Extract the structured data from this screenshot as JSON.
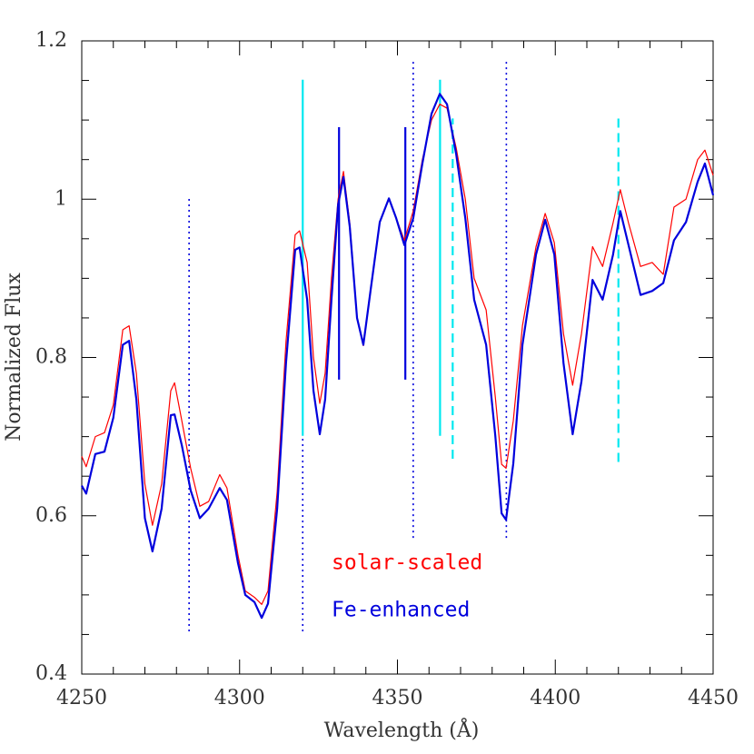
{
  "chart_data": {
    "type": "line",
    "xlabel": "Wavelength (Å)",
    "ylabel": "Normalized Flux",
    "x": [
      4250,
      4251.4,
      4254.3,
      4257.2,
      4260,
      4263,
      4265,
      4267.3,
      4270,
      4272.4,
      4275.3,
      4278.2,
      4279.4,
      4281.7,
      4284.5,
      4287.4,
      4290.2,
      4293.7,
      4296,
      4299.5,
      4301.8,
      4304.7,
      4307,
      4309,
      4311.9,
      4314.7,
      4317.6,
      4319,
      4321.4,
      4323.4,
      4325.4,
      4327.1,
      4329.1,
      4331.2,
      4332.9,
      4334.9,
      4337.2,
      4339.2,
      4341.5,
      4344.4,
      4347.3,
      4349.6,
      4352.2,
      4355,
      4357.9,
      4360.8,
      4363.4,
      4365.7,
      4368.6,
      4371.5,
      4374.3,
      4378.1,
      4381,
      4383,
      4384.4,
      4386.7,
      4389.6,
      4393.9,
      4396.8,
      4399.7,
      4402.6,
      4405.5,
      4408.3,
      4411.8,
      4415,
      4418.3,
      4420.6,
      4423.2,
      4427,
      4430.7,
      4434.2,
      4437.6,
      4441.4,
      4445.1,
      4447.4,
      4450
    ],
    "series": [
      {
        "name": "solar-scaled",
        "color": "#ff0000",
        "width": 1.2,
        "values": [
          0.675,
          0.662,
          0.7,
          0.705,
          0.74,
          0.835,
          0.84,
          0.78,
          0.64,
          0.588,
          0.64,
          0.758,
          0.768,
          0.72,
          0.66,
          0.612,
          0.618,
          0.652,
          0.635,
          0.55,
          0.505,
          0.497,
          0.488,
          0.505,
          0.63,
          0.82,
          0.955,
          0.96,
          0.92,
          0.8,
          0.742,
          0.78,
          0.9,
          1.0,
          1.035,
          0.97,
          0.85,
          0.815,
          0.885,
          0.971,
          1.0,
          0.976,
          0.948,
          0.985,
          1.05,
          1.1,
          1.12,
          1.115,
          1.065,
          1.0,
          0.9,
          0.86,
          0.75,
          0.665,
          0.66,
          0.72,
          0.84,
          0.94,
          0.982,
          0.945,
          0.83,
          0.765,
          0.83,
          0.94,
          0.915,
          0.97,
          1.012,
          0.97,
          0.915,
          0.92,
          0.905,
          0.99,
          1.0,
          1.05,
          1.062,
          1.03
        ]
      },
      {
        "name": "Fe-enhanced",
        "color": "#0000dd",
        "width": 2.2,
        "values": [
          0.638,
          0.628,
          0.678,
          0.681,
          0.724,
          0.816,
          0.821,
          0.747,
          0.597,
          0.555,
          0.609,
          0.727,
          0.728,
          0.689,
          0.632,
          0.597,
          0.609,
          0.635,
          0.62,
          0.54,
          0.5,
          0.491,
          0.471,
          0.489,
          0.609,
          0.793,
          0.936,
          0.939,
          0.873,
          0.758,
          0.703,
          0.747,
          0.873,
          0.993,
          1.028,
          0.965,
          0.85,
          0.816,
          0.885,
          0.971,
          1.001,
          0.976,
          0.942,
          0.976,
          1.045,
          1.108,
          1.133,
          1.12,
          1.057,
          0.976,
          0.873,
          0.816,
          0.701,
          0.603,
          0.595,
          0.666,
          0.816,
          0.93,
          0.974,
          0.93,
          0.793,
          0.703,
          0.77,
          0.898,
          0.873,
          0.93,
          0.985,
          0.942,
          0.879,
          0.884,
          0.894,
          0.948,
          0.971,
          1.022,
          1.045,
          1.005
        ]
      }
    ],
    "markers": [
      {
        "x": 4284,
        "ymin": 0.454,
        "ymax": 1.001,
        "color": "#0000dd",
        "style": "dotted"
      },
      {
        "x": 4320,
        "ymin": 0.454,
        "ymax": 0.701,
        "color": "#0000dd",
        "style": "dotted"
      },
      {
        "x": 4320,
        "ymin": 0.701,
        "ymax": 1.151,
        "color": "#00e8f0",
        "style": "solid"
      },
      {
        "x": 4331.5,
        "ymin": 0.772,
        "ymax": 1.091,
        "color": "#0000dd",
        "style": "solid"
      },
      {
        "x": 4352.5,
        "ymin": 0.772,
        "ymax": 1.091,
        "color": "#0000dd",
        "style": "solid"
      },
      {
        "x": 4355,
        "ymin": 0.572,
        "ymax": 1.174,
        "color": "#0000dd",
        "style": "dotted"
      },
      {
        "x": 4363.5,
        "ymin": 0.701,
        "ymax": 1.151,
        "color": "#00e8f0",
        "style": "solid"
      },
      {
        "x": 4367.5,
        "ymin": 0.672,
        "ymax": 1.102,
        "color": "#00e8f0",
        "style": "dashed"
      },
      {
        "x": 4384.5,
        "ymin": 0.572,
        "ymax": 1.174,
        "color": "#0000dd",
        "style": "dotted"
      },
      {
        "x": 4420,
        "ymin": 0.668,
        "ymax": 1.102,
        "color": "#00e8f0",
        "style": "dashed"
      }
    ],
    "xlim": [
      4250,
      4450
    ],
    "ylim": [
      0.4,
      1.2
    ],
    "xticks": [
      4250,
      4300,
      4350,
      4400,
      4450
    ],
    "yticks": [
      0.4,
      0.6,
      0.8,
      1,
      1.2
    ],
    "xminorticks": [
      4260,
      4270,
      4280,
      4290,
      4310,
      4320,
      4330,
      4340,
      4360,
      4370,
      4380,
      4390,
      4410,
      4420,
      4430,
      4440
    ],
    "yminorticks": [
      0.45,
      0.5,
      0.55,
      0.65,
      0.7,
      0.75,
      0.85,
      0.9,
      0.95,
      1.05,
      1.1,
      1.15
    ]
  }
}
